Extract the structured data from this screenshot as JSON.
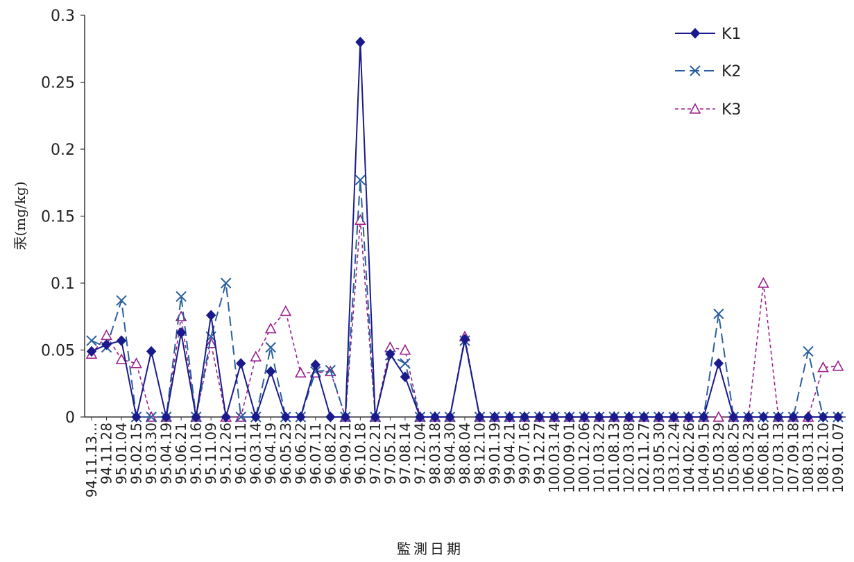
{
  "chart_data": {
    "type": "line",
    "ylabel": "汞(mg/kg)",
    "xlabel": "監測日期",
    "ylim": [
      0,
      0.3
    ],
    "yticks": [
      "0",
      "0.05",
      "0.1",
      "0.15",
      "0.2",
      "0.25",
      "0.3"
    ],
    "legend_position": "top-right",
    "categories": [
      "94.11.13...",
      "94.11.28",
      "95.01.04",
      "95.02.15",
      "95.03.30",
      "95.04.19",
      "95.06.21",
      "95.10.16",
      "95.11.09",
      "95.12.26",
      "96.01.11",
      "96.03.14",
      "96.04.19",
      "96.05.23",
      "96.06.22",
      "96.07.11",
      "96.08.22",
      "96.09.21",
      "96.10.18",
      "97.02.21",
      "97.05.21",
      "97.08.14",
      "97.12.04",
      "98.03.18",
      "98.04.30",
      "98.08.04",
      "98.12.10",
      "99.01.19",
      "99.04.21",
      "99.07.16",
      "99.12.27",
      "100.03.14",
      "100.09.01",
      "100.12.06",
      "101.03.22",
      "101.08.13",
      "102.03.08",
      "102.11.27",
      "103.05.30",
      "103.12.24",
      "104.02.26",
      "104.09.15",
      "105.03.29",
      "105.08.25",
      "106.03.23",
      "106.08.16",
      "107.03.13",
      "107.09.18",
      "108.03.13",
      "108.12.10",
      "109.01.07"
    ],
    "series": [
      {
        "name": "K1",
        "color": "#1a1a8c",
        "dash": "solid",
        "marker": "diamond",
        "values": [
          0.049,
          0.054,
          0.057,
          0,
          0.049,
          0,
          0.063,
          0,
          0.076,
          0,
          0.04,
          0,
          0.034,
          0,
          0,
          0.039,
          0,
          0,
          0.28,
          0,
          0.047,
          0.03,
          0,
          0,
          0,
          0.058,
          0,
          0,
          0,
          0,
          0,
          0,
          0,
          0,
          0,
          0,
          0,
          0,
          0,
          0,
          0,
          0,
          0.04,
          0,
          0,
          0,
          0,
          0,
          0,
          0,
          0
        ]
      },
      {
        "name": "K2",
        "color": "#2a5f9e",
        "dash": "long-dash",
        "marker": "x",
        "values": [
          0.057,
          0.052,
          0.087,
          0,
          0,
          0,
          0.09,
          0,
          0.06,
          0.1,
          0,
          0,
          0.052,
          0,
          0,
          0.034,
          0.035,
          0,
          0.177,
          0,
          0.046,
          0.04,
          0,
          0,
          0,
          0.057,
          0,
          0,
          0,
          0,
          0,
          0,
          0,
          0,
          0,
          0,
          0,
          0,
          0,
          0,
          0,
          0,
          0.077,
          0,
          0,
          0,
          0,
          0,
          0.049,
          0,
          0
        ]
      },
      {
        "name": "K3",
        "color": "#9b1f8a",
        "dash": "short-dash",
        "marker": "triangle",
        "values": [
          0.047,
          0.061,
          0.043,
          0.04,
          0,
          0,
          0.075,
          0,
          0.055,
          0,
          0,
          0.045,
          0.066,
          0.079,
          0.033,
          0.033,
          0.034,
          0,
          0.147,
          0,
          0.052,
          0.05,
          0,
          0,
          0,
          0.06,
          0,
          0,
          0,
          0,
          0,
          0,
          0,
          0,
          0,
          0,
          0,
          0,
          0,
          0,
          0,
          0,
          0,
          0,
          0,
          0.1,
          0,
          0,
          0,
          0.037,
          0.038
        ]
      }
    ]
  }
}
